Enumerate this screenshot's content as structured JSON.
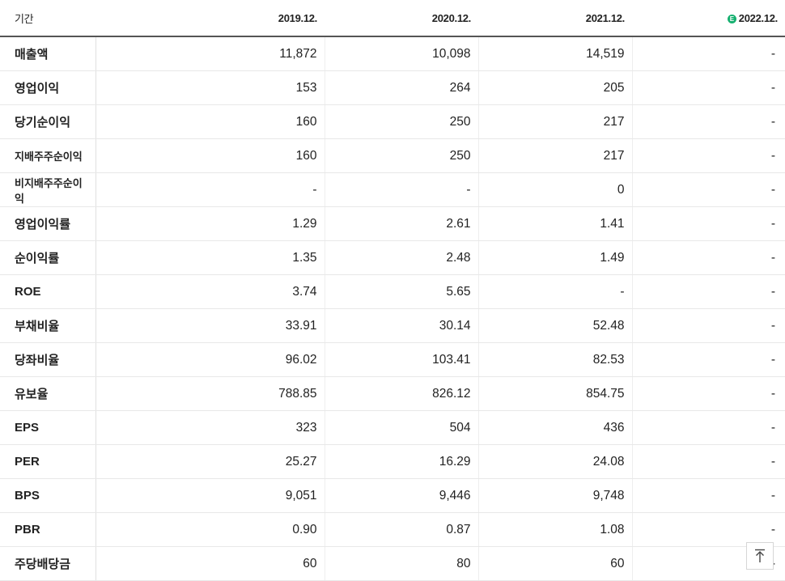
{
  "header": {
    "period_label": "기간",
    "columns": [
      "2019.12.",
      "2020.12.",
      "2021.12.",
      "2022.12."
    ],
    "estimate_badge": "E"
  },
  "rows": [
    {
      "label": "매출액",
      "values": [
        "11,872",
        "10,098",
        "14,519",
        "-"
      ]
    },
    {
      "label": "영업이익",
      "values": [
        "153",
        "264",
        "205",
        "-"
      ]
    },
    {
      "label": "당기순이익",
      "values": [
        "160",
        "250",
        "217",
        "-"
      ]
    },
    {
      "label": "지배주주순이익",
      "values": [
        "160",
        "250",
        "217",
        "-"
      ]
    },
    {
      "label": "비지배주주순이익",
      "values": [
        "-",
        "-",
        "0",
        "-"
      ]
    },
    {
      "label": "영업이익률",
      "values": [
        "1.29",
        "2.61",
        "1.41",
        "-"
      ]
    },
    {
      "label": "순이익률",
      "values": [
        "1.35",
        "2.48",
        "1.49",
        "-"
      ]
    },
    {
      "label": "ROE",
      "values": [
        "3.74",
        "5.65",
        "-",
        "-"
      ]
    },
    {
      "label": "부채비율",
      "values": [
        "33.91",
        "30.14",
        "52.48",
        "-"
      ]
    },
    {
      "label": "당좌비율",
      "values": [
        "96.02",
        "103.41",
        "82.53",
        "-"
      ]
    },
    {
      "label": "유보율",
      "values": [
        "788.85",
        "826.12",
        "854.75",
        "-"
      ]
    },
    {
      "label": "EPS",
      "values": [
        "323",
        "504",
        "436",
        "-"
      ]
    },
    {
      "label": "PER",
      "values": [
        "25.27",
        "16.29",
        "24.08",
        "-"
      ]
    },
    {
      "label": "BPS",
      "values": [
        "9,051",
        "9,446",
        "9,748",
        "-"
      ]
    },
    {
      "label": "PBR",
      "values": [
        "0.90",
        "0.87",
        "1.08",
        "-"
      ]
    },
    {
      "label": "주당배당금",
      "values": [
        "60",
        "80",
        "60",
        "-"
      ]
    }
  ],
  "scroll_top_icon": "arrow-up-to-top-icon",
  "colors": {
    "estimate_badge": "#16b070",
    "header_rule": "#555555"
  }
}
